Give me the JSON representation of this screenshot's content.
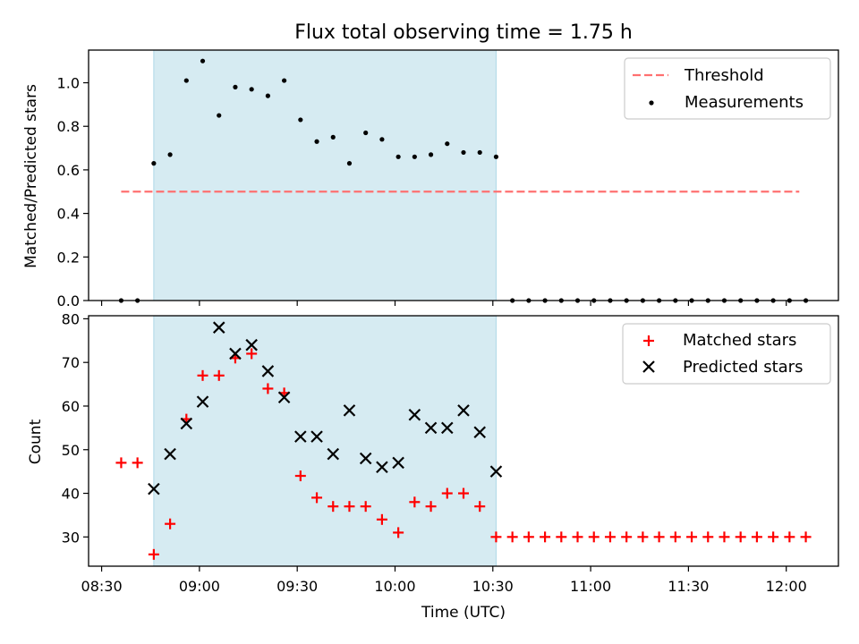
{
  "chart_data": [
    {
      "type": "scatter",
      "title": "Flux total observing time = 1.75 h",
      "xlabel": "",
      "ylabel": "Matched/Predicted stars",
      "ylim": [
        0,
        1.15
      ],
      "yticks": [
        "0.0",
        "0.2",
        "0.4",
        "0.6",
        "0.8",
        "1.0"
      ],
      "ytick_values": [
        0,
        0.2,
        0.4,
        0.6,
        0.8,
        1.0
      ],
      "xlim_minutes": [
        506,
        736
      ],
      "x_tick_minutes": [
        510,
        540,
        570,
        600,
        630,
        660,
        690,
        720
      ],
      "highlight_span_minutes": [
        526,
        631
      ],
      "legend": "upper right",
      "series": [
        {
          "name": "Threshold",
          "style": "dashed-line",
          "color": "#ff7070",
          "x": [
            516,
            724
          ],
          "y": [
            0.5,
            0.5
          ]
        },
        {
          "name": "Measurements",
          "style": "dot",
          "color": "#000000",
          "x": [
            516,
            521,
            526,
            531,
            536,
            541,
            546,
            551,
            556,
            561,
            566,
            571,
            576,
            581,
            586,
            591,
            596,
            601,
            606,
            611,
            616,
            621,
            626,
            631,
            636,
            641,
            646,
            651,
            656,
            661,
            666,
            671,
            676,
            681,
            686,
            691,
            696,
            701,
            706,
            711,
            716,
            721,
            726
          ],
          "y": [
            0,
            0,
            0.63,
            0.67,
            1.01,
            1.1,
            0.85,
            0.98,
            0.97,
            0.94,
            1.01,
            0.83,
            0.73,
            0.75,
            0.63,
            0.77,
            0.74,
            0.66,
            0.66,
            0.67,
            0.72,
            0.68,
            0.68,
            0.66,
            0,
            0,
            0,
            0,
            0,
            0,
            0,
            0,
            0,
            0,
            0,
            0,
            0,
            0,
            0,
            0,
            0,
            0,
            0
          ]
        }
      ]
    },
    {
      "type": "scatter",
      "title": "",
      "xlabel": "Time (UTC)",
      "ylabel": "Count",
      "ylim": [
        23.3,
        80.7
      ],
      "yticks": [
        "30",
        "40",
        "50",
        "60",
        "70",
        "80"
      ],
      "ytick_values": [
        30,
        40,
        50,
        60,
        70,
        80
      ],
      "xlim_minutes": [
        506,
        736
      ],
      "x_tick_minutes": [
        510,
        540,
        570,
        600,
        630,
        660,
        690,
        720
      ],
      "x_tick_labels": [
        "08:30",
        "09:00",
        "09:30",
        "10:00",
        "10:30",
        "11:00",
        "11:30",
        "12:00"
      ],
      "highlight_span_minutes": [
        526,
        631
      ],
      "legend": "upper right",
      "series": [
        {
          "name": "Matched stars",
          "style": "plus",
          "color": "#ff0000",
          "x": [
            516,
            521,
            526,
            531,
            536,
            541,
            546,
            551,
            556,
            561,
            566,
            571,
            576,
            581,
            586,
            591,
            596,
            601,
            606,
            611,
            616,
            621,
            626,
            631,
            636,
            641,
            646,
            651,
            656,
            661,
            666,
            671,
            676,
            681,
            686,
            691,
            696,
            701,
            706,
            711,
            716,
            721,
            726
          ],
          "y": [
            47,
            47,
            26,
            33,
            57,
            67,
            67,
            71,
            72,
            64,
            63,
            44,
            39,
            37,
            37,
            37,
            34,
            31,
            38,
            37,
            40,
            40,
            37,
            30,
            30,
            30,
            30,
            30,
            30,
            30,
            30,
            30,
            30,
            30,
            30,
            30,
            30,
            30,
            30,
            30,
            30,
            30,
            30
          ]
        },
        {
          "name": "Predicted stars",
          "style": "x",
          "color": "#000000",
          "x": [
            526,
            531,
            536,
            541,
            546,
            551,
            556,
            561,
            566,
            571,
            576,
            581,
            586,
            591,
            596,
            601,
            606,
            611,
            616,
            621,
            626,
            631
          ],
          "y": [
            41,
            49,
            56,
            61,
            78,
            72,
            74,
            68,
            62,
            53,
            53,
            49,
            59,
            48,
            46,
            47,
            58,
            55,
            55,
            59,
            54,
            45
          ]
        }
      ]
    }
  ]
}
